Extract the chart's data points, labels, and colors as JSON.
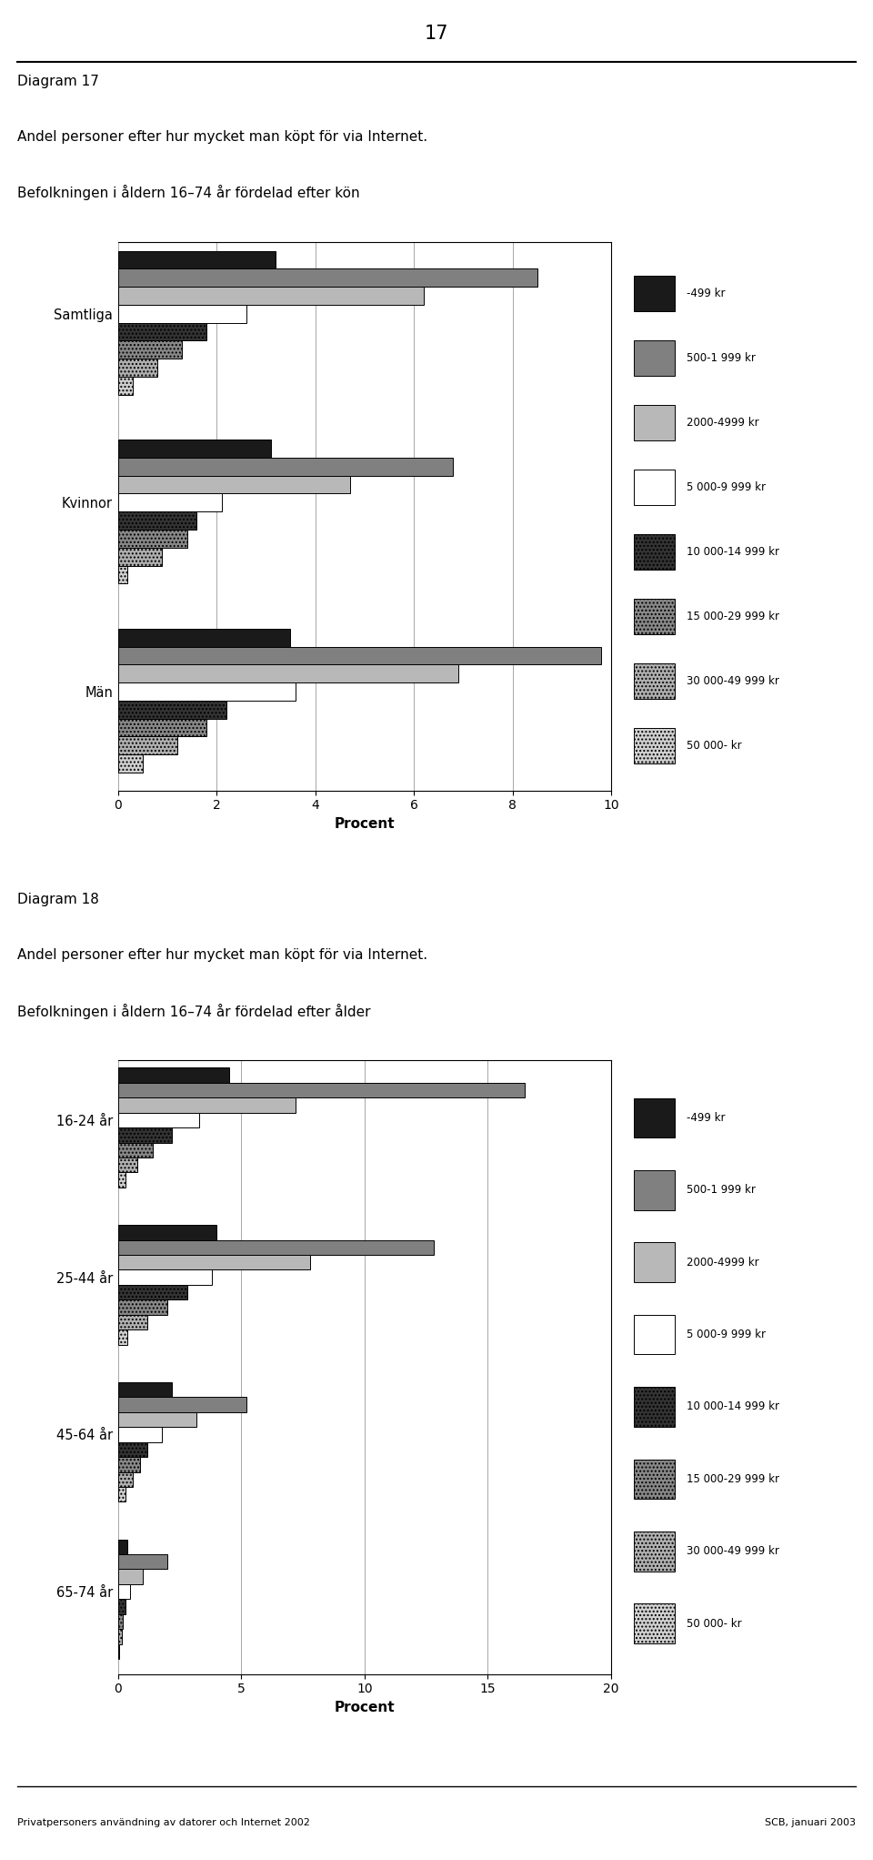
{
  "chart1": {
    "title_lines": [
      "Diagram 17",
      "Andel personer efter hur mycket man köpt för via Internet.",
      "Befolkningen i åldern 16–74 år fördelad efter kön"
    ],
    "groups": [
      "Samtliga",
      "Kvinnor",
      "Män"
    ],
    "categories": [
      "-499 kr",
      "500-1 999 kr",
      "2000-4999 kr",
      "5 000-9 999 kr",
      "10 000-14 999 kr",
      "15 000-29 999 kr",
      "30 000-49 999 kr",
      "50 000- kr"
    ],
    "data": {
      "Samtliga": [
        3.2,
        8.5,
        6.2,
        2.6,
        1.8,
        1.3,
        0.8,
        0.3
      ],
      "Kvinnor": [
        3.1,
        6.8,
        4.7,
        2.1,
        1.6,
        1.4,
        0.9,
        0.2
      ],
      "Män": [
        3.5,
        9.8,
        6.9,
        3.6,
        2.2,
        1.8,
        1.2,
        0.5
      ]
    },
    "xlabel": "Procent",
    "xlim": [
      0,
      10
    ],
    "xticks": [
      0,
      2,
      4,
      6,
      8,
      10
    ]
  },
  "chart2": {
    "title_lines": [
      "Diagram 18",
      "Andel personer efter hur mycket man köpt för via Internet.",
      "Befolkningen i åldern 16–74 år fördelad efter ålder"
    ],
    "groups": [
      "16-24 år",
      "25-44 år",
      "45-64 år",
      "65-74 år"
    ],
    "categories": [
      "-499 kr",
      "500-1 999 kr",
      "2000-4999 kr",
      "5 000-9 999 kr",
      "10 000-14 999 kr",
      "15 000-29 999 kr",
      "30 000-49 999 kr",
      "50 000- kr"
    ],
    "data": {
      "16-24 år": [
        4.5,
        16.5,
        7.2,
        3.3,
        2.2,
        1.4,
        0.8,
        0.3
      ],
      "25-44 år": [
        4.0,
        12.8,
        7.8,
        3.8,
        2.8,
        2.0,
        1.2,
        0.4
      ],
      "45-64 år": [
        2.2,
        5.2,
        3.2,
        1.8,
        1.2,
        0.9,
        0.6,
        0.3
      ],
      "65-74 år": [
        0.4,
        2.0,
        1.0,
        0.5,
        0.3,
        0.2,
        0.15,
        0.05
      ]
    },
    "xlabel": "Procent",
    "xlim": [
      0,
      20
    ],
    "xticks": [
      0,
      5,
      10,
      15,
      20
    ]
  },
  "page_number": "17",
  "footer_left": "Privatpersoners användning av datorer och Internet 2002",
  "footer_right": "SCB, januari 2003"
}
